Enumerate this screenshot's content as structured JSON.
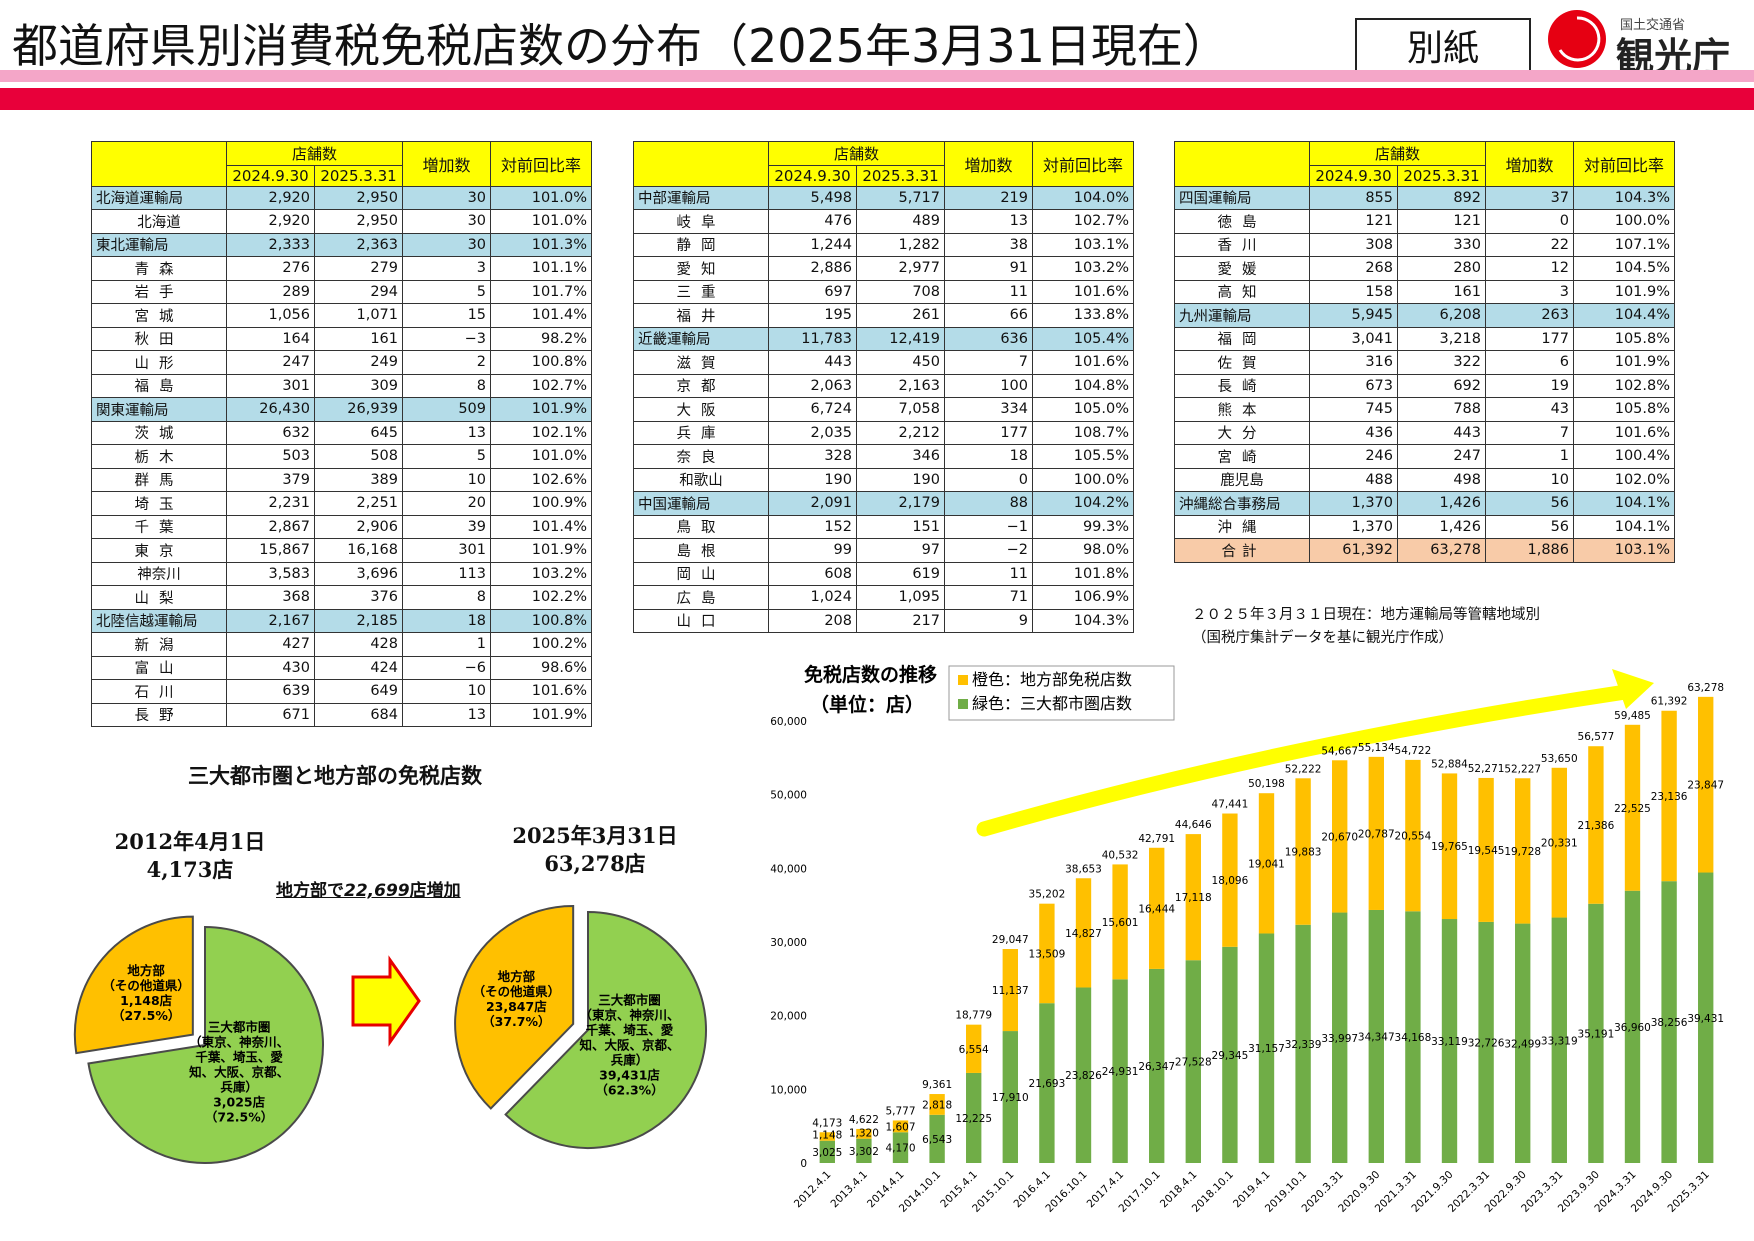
{
  "header": {
    "title": "都道府県別消費税免税店数の分布（2025年3月31日現在）",
    "appendix_label": "別紙",
    "ministry": "国土交通省",
    "agency": "観光庁",
    "colors": {
      "pink_band": "#f4a6c8",
      "red_band": "#e8003a",
      "logo_red": "#e60012"
    }
  },
  "tables": {
    "headers": {
      "stores": "店舗数",
      "date1": "2024.9.30",
      "date2": "2025.3.31",
      "increase": "増加数",
      "ratio": "対前回比率"
    },
    "left": [
      {
        "name": "北海道運輸局",
        "a": "2,920",
        "b": "2,950",
        "c": "30",
        "d": "101.0%",
        "type": "region"
      },
      {
        "name": "北海道",
        "a": "2,920",
        "b": "2,950",
        "c": "30",
        "d": "101.0%"
      },
      {
        "name": "東北運輸局",
        "a": "2,333",
        "b": "2,363",
        "c": "30",
        "d": "101.3%",
        "type": "region"
      },
      {
        "name": "青森",
        "a": "276",
        "b": "279",
        "c": "3",
        "d": "101.1%"
      },
      {
        "name": "岩手",
        "a": "289",
        "b": "294",
        "c": "5",
        "d": "101.7%"
      },
      {
        "name": "宮城",
        "a": "1,056",
        "b": "1,071",
        "c": "15",
        "d": "101.4%"
      },
      {
        "name": "秋田",
        "a": "164",
        "b": "161",
        "c": "−3",
        "d": "98.2%"
      },
      {
        "name": "山形",
        "a": "247",
        "b": "249",
        "c": "2",
        "d": "100.8%"
      },
      {
        "name": "福島",
        "a": "301",
        "b": "309",
        "c": "8",
        "d": "102.7%"
      },
      {
        "name": "関東運輸局",
        "a": "26,430",
        "b": "26,939",
        "c": "509",
        "d": "101.9%",
        "type": "region"
      },
      {
        "name": "茨城",
        "a": "632",
        "b": "645",
        "c": "13",
        "d": "102.1%"
      },
      {
        "name": "栃木",
        "a": "503",
        "b": "508",
        "c": "5",
        "d": "101.0%"
      },
      {
        "name": "群馬",
        "a": "379",
        "b": "389",
        "c": "10",
        "d": "102.6%"
      },
      {
        "name": "埼玉",
        "a": "2,231",
        "b": "2,251",
        "c": "20",
        "d": "100.9%"
      },
      {
        "name": "千葉",
        "a": "2,867",
        "b": "2,906",
        "c": "39",
        "d": "101.4%"
      },
      {
        "name": "東京",
        "a": "15,867",
        "b": "16,168",
        "c": "301",
        "d": "101.9%"
      },
      {
        "name": "神奈川",
        "a": "3,583",
        "b": "3,696",
        "c": "113",
        "d": "103.2%"
      },
      {
        "name": "山梨",
        "a": "368",
        "b": "376",
        "c": "8",
        "d": "102.2%"
      },
      {
        "name": "北陸信越運輸局",
        "a": "2,167",
        "b": "2,185",
        "c": "18",
        "d": "100.8%",
        "type": "region"
      },
      {
        "name": "新潟",
        "a": "427",
        "b": "428",
        "c": "1",
        "d": "100.2%"
      },
      {
        "name": "富山",
        "a": "430",
        "b": "424",
        "c": "−6",
        "d": "98.6%"
      },
      {
        "name": "石川",
        "a": "639",
        "b": "649",
        "c": "10",
        "d": "101.6%"
      },
      {
        "name": "長野",
        "a": "671",
        "b": "684",
        "c": "13",
        "d": "101.9%"
      }
    ],
    "middle": [
      {
        "name": "中部運輸局",
        "a": "5,498",
        "b": "5,717",
        "c": "219",
        "d": "104.0%",
        "type": "region"
      },
      {
        "name": "岐阜",
        "a": "476",
        "b": "489",
        "c": "13",
        "d": "102.7%"
      },
      {
        "name": "静岡",
        "a": "1,244",
        "b": "1,282",
        "c": "38",
        "d": "103.1%"
      },
      {
        "name": "愛知",
        "a": "2,886",
        "b": "2,977",
        "c": "91",
        "d": "103.2%"
      },
      {
        "name": "三重",
        "a": "697",
        "b": "708",
        "c": "11",
        "d": "101.6%"
      },
      {
        "name": "福井",
        "a": "195",
        "b": "261",
        "c": "66",
        "d": "133.8%"
      },
      {
        "name": "近畿運輸局",
        "a": "11,783",
        "b": "12,419",
        "c": "636",
        "d": "105.4%",
        "type": "region"
      },
      {
        "name": "滋賀",
        "a": "443",
        "b": "450",
        "c": "7",
        "d": "101.6%"
      },
      {
        "name": "京都",
        "a": "2,063",
        "b": "2,163",
        "c": "100",
        "d": "104.8%"
      },
      {
        "name": "大阪",
        "a": "6,724",
        "b": "7,058",
        "c": "334",
        "d": "105.0%"
      },
      {
        "name": "兵庫",
        "a": "2,035",
        "b": "2,212",
        "c": "177",
        "d": "108.7%"
      },
      {
        "name": "奈良",
        "a": "328",
        "b": "346",
        "c": "18",
        "d": "105.5%"
      },
      {
        "name": "和歌山",
        "a": "190",
        "b": "190",
        "c": "0",
        "d": "100.0%"
      },
      {
        "name": "中国運輸局",
        "a": "2,091",
        "b": "2,179",
        "c": "88",
        "d": "104.2%",
        "type": "region"
      },
      {
        "name": "鳥取",
        "a": "152",
        "b": "151",
        "c": "−1",
        "d": "99.3%"
      },
      {
        "name": "島根",
        "a": "99",
        "b": "97",
        "c": "−2",
        "d": "98.0%"
      },
      {
        "name": "岡山",
        "a": "608",
        "b": "619",
        "c": "11",
        "d": "101.8%"
      },
      {
        "name": "広島",
        "a": "1,024",
        "b": "1,095",
        "c": "71",
        "d": "106.9%"
      },
      {
        "name": "山口",
        "a": "208",
        "b": "217",
        "c": "9",
        "d": "104.3%"
      }
    ],
    "right": [
      {
        "name": "四国運輸局",
        "a": "855",
        "b": "892",
        "c": "37",
        "d": "104.3%",
        "type": "region"
      },
      {
        "name": "徳島",
        "a": "121",
        "b": "121",
        "c": "0",
        "d": "100.0%"
      },
      {
        "name": "香川",
        "a": "308",
        "b": "330",
        "c": "22",
        "d": "107.1%"
      },
      {
        "name": "愛媛",
        "a": "268",
        "b": "280",
        "c": "12",
        "d": "104.5%"
      },
      {
        "name": "高知",
        "a": "158",
        "b": "161",
        "c": "3",
        "d": "101.9%"
      },
      {
        "name": "九州運輸局",
        "a": "5,945",
        "b": "6,208",
        "c": "263",
        "d": "104.4%",
        "type": "region"
      },
      {
        "name": "福岡",
        "a": "3,041",
        "b": "3,218",
        "c": "177",
        "d": "105.8%"
      },
      {
        "name": "佐賀",
        "a": "316",
        "b": "322",
        "c": "6",
        "d": "101.9%"
      },
      {
        "name": "長崎",
        "a": "673",
        "b": "692",
        "c": "19",
        "d": "102.8%"
      },
      {
        "name": "熊本",
        "a": "745",
        "b": "788",
        "c": "43",
        "d": "105.8%"
      },
      {
        "name": "大分",
        "a": "436",
        "b": "443",
        "c": "7",
        "d": "101.6%"
      },
      {
        "name": "宮崎",
        "a": "246",
        "b": "247",
        "c": "1",
        "d": "100.4%"
      },
      {
        "name": "鹿児島",
        "a": "488",
        "b": "498",
        "c": "10",
        "d": "102.0%"
      },
      {
        "name": "沖縄総合事務局",
        "a": "1,370",
        "b": "1,426",
        "c": "56",
        "d": "104.1%",
        "type": "region"
      },
      {
        "name": "沖縄",
        "a": "1,370",
        "b": "1,426",
        "c": "56",
        "d": "104.1%"
      },
      {
        "name": "合計",
        "a": "61,392",
        "b": "63,278",
        "c": "1,886",
        "d": "103.1%",
        "type": "total"
      }
    ]
  },
  "note": {
    "line1": "２０２５年３月３１日現在：地方運輸局等管轄地域別",
    "line2": "（国税庁集計データを基に観光庁作成）"
  },
  "pies": {
    "title": "三大都市圏と地方部の免税店数",
    "increase_prefix": "地方部で",
    "increase_value": "22,699",
    "increase_suffix": "店増加",
    "left": {
      "date": "2012年4月1日",
      "total": "4,173店",
      "rural_lines": [
        "地方部",
        "（その他道県）",
        "1,148店",
        "（27.5%）"
      ],
      "urban_lines": [
        "三大都市圏",
        "（東京、神奈川、",
        "千葉、埼玉、愛",
        "知、大阪、京都、",
        "兵庫）",
        "3,025店",
        "（72.5%）"
      ]
    },
    "right": {
      "date": "2025年3月31日",
      "total": "63,278店",
      "rural_lines": [
        "地方部",
        "（その他道県）",
        "23,847店",
        "（37.7%）"
      ],
      "urban_lines": [
        "三大都市圏",
        "（東京、神奈川、",
        "千葉、埼玉、愛",
        "知、大阪、京都、",
        "兵庫）",
        "39,431店",
        "（62.3%）"
      ]
    }
  },
  "chart_data": [
    {
      "type": "pie",
      "title": "2012年4月1日",
      "categories": [
        "地方部（その他道県）",
        "三大都市圏"
      ],
      "values": [
        1148,
        3025
      ],
      "percent": [
        27.5,
        72.5
      ],
      "colors": [
        "#ffc000",
        "#92d050"
      ]
    },
    {
      "type": "pie",
      "title": "2025年3月31日",
      "categories": [
        "地方部（その他道県）",
        "三大都市圏"
      ],
      "values": [
        23847,
        39431
      ],
      "percent": [
        37.7,
        62.3
      ],
      "colors": [
        "#ffc000",
        "#92d050"
      ]
    },
    {
      "type": "bar",
      "stacked": true,
      "title": "免税店数の推移",
      "subtitle": "（単位：店）",
      "legend": [
        "橙色：地方部免税店数",
        "緑色：三大都市圏店数"
      ],
      "legend_placement": "top",
      "categories": [
        "2012.4.1",
        "2013.4.1",
        "2014.4.1",
        "2014.10.1",
        "2015.4.1",
        "2015.10.1",
        "2016.4.1",
        "2016.10.1",
        "2017.4.1",
        "2017.10.1",
        "2018.4.1",
        "2018.10.1",
        "2019.4.1",
        "2019.10.1",
        "2020.3.31",
        "2020.9.30",
        "2021.3.31",
        "2021.9.30",
        "2022.3.31",
        "2022.9.30",
        "2023.3.31",
        "2023.9.30",
        "2024.3.31",
        "2024.9.30",
        "2025.3.31"
      ],
      "series": [
        {
          "name": "緑色：三大都市圏店数",
          "color": "#70ad47",
          "values": [
            3025,
            3302,
            4170,
            6543,
            12225,
            17910,
            21693,
            23826,
            24931,
            26347,
            27528,
            29345,
            31157,
            32339,
            33997,
            34347,
            34168,
            33119,
            32726,
            32499,
            33319,
            35191,
            36960,
            38256,
            39431
          ]
        },
        {
          "name": "橙色：地方部免税店数",
          "color": "#ffc000",
          "values": [
            1148,
            1320,
            1607,
            2818,
            6554,
            11137,
            13509,
            14827,
            15601,
            16444,
            17118,
            18096,
            19041,
            19883,
            20670,
            20787,
            20554,
            19765,
            19545,
            19728,
            20331,
            21386,
            22525,
            23136,
            23847
          ]
        }
      ],
      "totals": [
        4173,
        4622,
        5777,
        9361,
        18779,
        29047,
        35202,
        38653,
        40532,
        42791,
        44646,
        47441,
        50198,
        52222,
        54667,
        55134,
        54722,
        52884,
        52271,
        52227,
        53650,
        56577,
        59485,
        61392,
        63278
      ],
      "ylim": [
        0,
        60000
      ],
      "yticks": [
        "0",
        "10,000",
        "20,000",
        "30,000",
        "40,000",
        "50,000",
        "60,000"
      ],
      "grid": false,
      "annotation": "upward-yellow-arrow"
    }
  ]
}
